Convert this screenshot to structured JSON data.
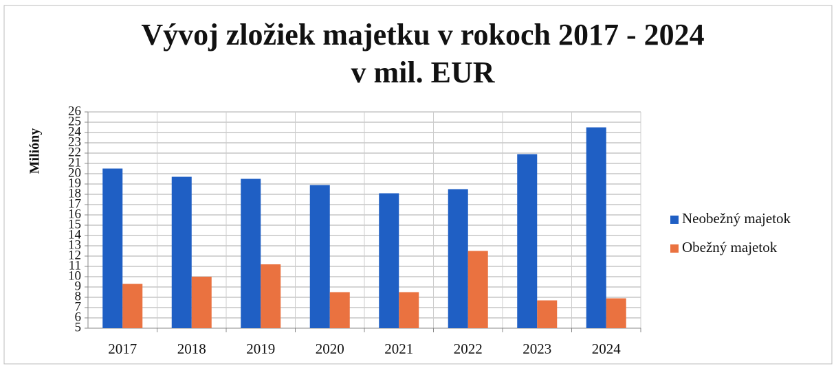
{
  "chart_data": {
    "type": "bar",
    "title": [
      "Vývoj zložiek majetku v rokoch 2017 - 2024",
      "v mil. EUR"
    ],
    "y_label": "Milióny",
    "categories": [
      "2017",
      "2018",
      "2019",
      "2020",
      "2021",
      "2022",
      "2023",
      "2024"
    ],
    "series": [
      {
        "name": "Neobežný majetok",
        "color": "#1f5fc4",
        "values": [
          20.5,
          19.7,
          19.5,
          18.9,
          18.1,
          18.5,
          21.9,
          24.5
        ]
      },
      {
        "name": "Obežný majetok",
        "color": "#ea7240",
        "values": [
          9.3,
          10.0,
          11.2,
          8.5,
          8.5,
          12.5,
          7.7,
          7.9
        ]
      }
    ],
    "ylim": [
      5,
      26
    ],
    "yticks": [
      5,
      6,
      7,
      8,
      9,
      10,
      11,
      12,
      13,
      14,
      15,
      16,
      17,
      18,
      19,
      20,
      21,
      22,
      23,
      24,
      25,
      26
    ],
    "grid": true,
    "legend": "right"
  }
}
